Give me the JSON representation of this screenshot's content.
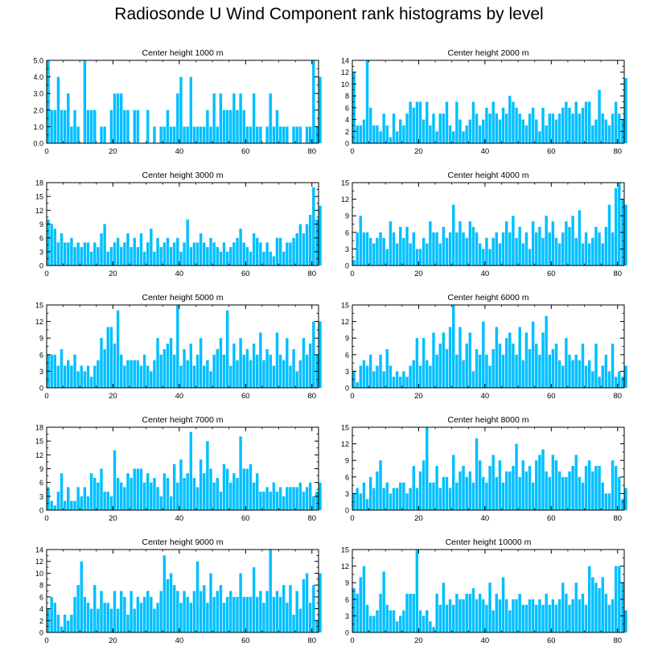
{
  "title": "Radiosonde U Wind Component rank histograms by level",
  "colors": {
    "bar": "#00bfff",
    "bar_edge": "#ffffff",
    "axis": "#000000"
  },
  "chart_data": [
    {
      "type": "bar",
      "title": "Center height 1000 m",
      "xlabel": "",
      "ylabel": "",
      "xlim": [
        0,
        82
      ],
      "ylim": [
        0,
        5
      ],
      "xticks": [
        0,
        20,
        40,
        60,
        80
      ],
      "xtick_labels": [
        "0",
        "20",
        "40",
        "60",
        "80"
      ],
      "yticks": [
        0,
        1,
        2,
        3,
        4,
        5
      ],
      "ytick_labels": [
        "0.0",
        "1.0",
        "2.0",
        "3.0",
        "4.0",
        "5.0"
      ],
      "x_start": 0,
      "values": [
        5,
        2,
        2,
        4,
        2,
        2,
        3,
        1,
        2,
        1,
        0,
        5,
        2,
        2,
        2,
        0,
        1,
        1,
        0,
        2,
        3,
        3,
        3,
        2,
        2,
        0,
        2,
        2,
        0,
        0,
        2,
        0,
        1,
        0,
        1,
        1,
        2,
        1,
        1,
        3,
        4,
        1,
        1,
        4,
        1,
        1,
        1,
        1,
        2,
        1,
        3,
        1,
        3,
        2,
        2,
        2,
        3,
        2,
        3,
        2,
        1,
        1,
        3,
        1,
        1,
        0,
        1,
        3,
        1,
        2,
        1,
        1,
        1,
        0,
        1,
        1,
        1,
        0,
        1,
        1,
        5,
        1,
        4
      ]
    },
    {
      "type": "bar",
      "title": "Center height 2000 m",
      "xlabel": "",
      "ylabel": "",
      "xlim": [
        0,
        82
      ],
      "ylim": [
        0,
        14
      ],
      "xticks": [
        0,
        20,
        40,
        60,
        80
      ],
      "xtick_labels": [
        "0",
        "20",
        "40",
        "60",
        "80"
      ],
      "yticks": [
        0,
        2,
        4,
        6,
        8,
        10,
        12,
        14
      ],
      "ytick_labels": [
        "0",
        "2",
        "4",
        "6",
        "8",
        "10",
        "12",
        "14"
      ],
      "x_start": 0,
      "values": [
        12,
        3,
        3,
        4,
        14,
        6,
        3,
        3,
        2,
        5,
        3,
        1,
        5,
        2,
        4,
        3,
        5,
        7,
        6,
        7,
        7,
        4,
        7,
        3,
        5,
        2,
        5,
        5,
        7,
        3,
        2,
        7,
        4,
        2,
        3,
        4,
        7,
        5,
        3,
        4,
        6,
        5,
        7,
        5,
        4,
        6,
        5,
        8,
        7,
        6,
        5,
        4,
        3,
        5,
        6,
        4,
        2,
        6,
        3,
        5,
        5,
        4,
        5,
        6,
        7,
        6,
        5,
        7,
        5,
        6,
        7,
        7,
        3,
        4,
        9,
        5,
        4,
        3,
        5,
        7,
        5,
        4,
        11
      ]
    },
    {
      "type": "bar",
      "title": "Center height 3000 m",
      "xlabel": "",
      "ylabel": "",
      "xlim": [
        0,
        82
      ],
      "ylim": [
        0,
        18
      ],
      "xticks": [
        0,
        20,
        40,
        60,
        80
      ],
      "xtick_labels": [
        "0",
        "20",
        "40",
        "60",
        "80"
      ],
      "yticks": [
        0,
        3,
        6,
        9,
        12,
        15,
        18
      ],
      "ytick_labels": [
        "0",
        "3",
        "6",
        "9",
        "12",
        "15",
        "18"
      ],
      "x_start": 0,
      "values": [
        10,
        9,
        8,
        5,
        7,
        5,
        5,
        6,
        4,
        5,
        4,
        5,
        5,
        3,
        5,
        4,
        7,
        9,
        3,
        4,
        5,
        6,
        4,
        5,
        7,
        4,
        6,
        4,
        7,
        3,
        5,
        8,
        3,
        6,
        4,
        5,
        6,
        4,
        5,
        6,
        3,
        5,
        10,
        4,
        5,
        5,
        7,
        5,
        4,
        6,
        5,
        4,
        3,
        5,
        3,
        4,
        5,
        6,
        8,
        5,
        4,
        3,
        7,
        6,
        5,
        3,
        5,
        3,
        2,
        6,
        6,
        3,
        5,
        5,
        6,
        7,
        9,
        7,
        9,
        11,
        17,
        10,
        13
      ]
    },
    {
      "type": "bar",
      "title": "Center height 4000 m",
      "xlabel": "",
      "ylabel": "",
      "xlim": [
        0,
        82
      ],
      "ylim": [
        0,
        15
      ],
      "xticks": [
        0,
        20,
        40,
        60,
        80
      ],
      "xtick_labels": [
        "0",
        "20",
        "40",
        "60",
        "80"
      ],
      "yticks": [
        0,
        3,
        6,
        9,
        12,
        15
      ],
      "ytick_labels": [
        "0",
        "3",
        "6",
        "9",
        "12",
        "15"
      ],
      "x_start": 0,
      "values": [
        1,
        6,
        9,
        6,
        6,
        5,
        4,
        5,
        6,
        5,
        3,
        8,
        6,
        4,
        7,
        5,
        7,
        4,
        6,
        3,
        3,
        5,
        4,
        8,
        6,
        6,
        4,
        7,
        5,
        6,
        11,
        6,
        8,
        6,
        5,
        8,
        7,
        6,
        4,
        3,
        5,
        3,
        5,
        6,
        4,
        6,
        8,
        6,
        9,
        5,
        7,
        4,
        6,
        3,
        8,
        6,
        7,
        5,
        9,
        6,
        8,
        5,
        4,
        6,
        8,
        7,
        9,
        5,
        10,
        4,
        6,
        4,
        5,
        7,
        6,
        4,
        7,
        11,
        6,
        14,
        15,
        12,
        11
      ]
    },
    {
      "type": "bar",
      "title": "Center height 5000 m",
      "xlabel": "",
      "ylabel": "",
      "xlim": [
        0,
        82
      ],
      "ylim": [
        0,
        15
      ],
      "xticks": [
        0,
        20,
        40,
        60,
        80
      ],
      "xtick_labels": [
        "0",
        "20",
        "40",
        "60",
        "80"
      ],
      "yticks": [
        0,
        3,
        6,
        9,
        12,
        15
      ],
      "ytick_labels": [
        "0",
        "3",
        "6",
        "9",
        "12",
        "15"
      ],
      "x_start": 0,
      "values": [
        6,
        6,
        6,
        4,
        7,
        4,
        5,
        4,
        6,
        3,
        4,
        3,
        4,
        2,
        4,
        5,
        9,
        7,
        11,
        11,
        8,
        14,
        6,
        4,
        5,
        5,
        5,
        5,
        4,
        6,
        4,
        3,
        5,
        9,
        6,
        7,
        8,
        9,
        6,
        15,
        4,
        7,
        5,
        8,
        4,
        6,
        9,
        4,
        5,
        3,
        6,
        7,
        9,
        6,
        14,
        4,
        8,
        5,
        9,
        6,
        7,
        5,
        8,
        6,
        10,
        5,
        7,
        6,
        4,
        10,
        6,
        5,
        9,
        4,
        7,
        3,
        5,
        9,
        6,
        8,
        12,
        6,
        12
      ]
    },
    {
      "type": "bar",
      "title": "Center height 6000 m",
      "xlabel": "",
      "ylabel": "",
      "xlim": [
        0,
        82
      ],
      "ylim": [
        0,
        15
      ],
      "xticks": [
        0,
        20,
        40,
        60,
        80
      ],
      "xtick_labels": [
        "0",
        "20",
        "40",
        "60",
        "80"
      ],
      "yticks": [
        0,
        3,
        6,
        9,
        12,
        15
      ],
      "ytick_labels": [
        "0",
        "3",
        "6",
        "9",
        "12",
        "15"
      ],
      "x_start": 0,
      "values": [
        3,
        1,
        4,
        5,
        4,
        6,
        3,
        4,
        6,
        3,
        7,
        4,
        2,
        3,
        2,
        3,
        2,
        4,
        5,
        9,
        4,
        9,
        5,
        4,
        10,
        6,
        8,
        10,
        7,
        11,
        15,
        6,
        11,
        5,
        8,
        10,
        3,
        7,
        6,
        12,
        6,
        4,
        7,
        11,
        8,
        6,
        9,
        10,
        8,
        6,
        11,
        5,
        10,
        7,
        12,
        8,
        6,
        10,
        13,
        6,
        7,
        8,
        5,
        4,
        9,
        6,
        5,
        6,
        5,
        8,
        4,
        5,
        3,
        8,
        2,
        4,
        6,
        3,
        8,
        2,
        3,
        2,
        4
      ]
    },
    {
      "type": "bar",
      "title": "Center height 7000 m",
      "xlabel": "",
      "ylabel": "",
      "xlim": [
        0,
        82
      ],
      "ylim": [
        0,
        18
      ],
      "xticks": [
        0,
        20,
        40,
        60,
        80
      ],
      "xtick_labels": [
        "0",
        "20",
        "40",
        "60",
        "80"
      ],
      "yticks": [
        0,
        3,
        6,
        9,
        12,
        15,
        18
      ],
      "ytick_labels": [
        "0",
        "3",
        "6",
        "9",
        "12",
        "15",
        "18"
      ],
      "x_start": 0,
      "values": [
        5,
        2,
        1,
        4,
        8,
        2,
        5,
        2,
        2,
        5,
        3,
        5,
        3,
        8,
        7,
        6,
        9,
        4,
        4,
        3,
        13,
        7,
        6,
        5,
        8,
        7,
        9,
        9,
        9,
        6,
        8,
        6,
        7,
        5,
        3,
        8,
        7,
        3,
        10,
        6,
        11,
        7,
        8,
        17,
        7,
        5,
        11,
        8,
        15,
        9,
        6,
        7,
        4,
        10,
        9,
        6,
        8,
        7,
        16,
        9,
        9,
        10,
        6,
        8,
        4,
        4,
        5,
        4,
        6,
        4,
        5,
        3,
        5,
        5,
        5,
        5,
        6,
        4,
        5,
        6,
        3,
        4,
        6
      ]
    },
    {
      "type": "bar",
      "title": "Center height 8000 m",
      "xlabel": "",
      "ylabel": "",
      "xlim": [
        0,
        82
      ],
      "ylim": [
        0,
        15
      ],
      "xticks": [
        0,
        20,
        40,
        60,
        80
      ],
      "xtick_labels": [
        "0",
        "20",
        "40",
        "60",
        "80"
      ],
      "yticks": [
        0,
        3,
        6,
        9,
        12,
        15
      ],
      "ytick_labels": [
        "0",
        "3",
        "6",
        "9",
        "12",
        "15"
      ],
      "x_start": 0,
      "values": [
        3,
        4,
        3,
        5,
        2,
        6,
        4,
        7,
        9,
        4,
        5,
        3,
        4,
        4,
        5,
        5,
        3,
        4,
        8,
        4,
        7,
        9,
        15,
        5,
        5,
        8,
        4,
        6,
        6,
        4,
        10,
        5,
        7,
        8,
        6,
        7,
        5,
        13,
        9,
        6,
        5,
        8,
        10,
        6,
        9,
        5,
        7,
        7,
        8,
        12,
        6,
        9,
        7,
        8,
        5,
        9,
        10,
        11,
        7,
        6,
        10,
        9,
        7,
        6,
        6,
        7,
        8,
        10,
        6,
        5,
        8,
        9,
        7,
        8,
        8,
        5,
        3,
        3,
        9,
        8,
        6,
        2,
        4
      ]
    },
    {
      "type": "bar",
      "title": "Center height 9000 m",
      "xlabel": "",
      "ylabel": "",
      "xlim": [
        0,
        82
      ],
      "ylim": [
        0,
        14
      ],
      "xticks": [
        0,
        20,
        40,
        60,
        80
      ],
      "xtick_labels": [
        "0",
        "20",
        "40",
        "60",
        "80"
      ],
      "yticks": [
        0,
        2,
        4,
        6,
        8,
        10,
        12,
        14
      ],
      "ytick_labels": [
        "0",
        "2",
        "4",
        "6",
        "8",
        "10",
        "12",
        "14"
      ],
      "x_start": 0,
      "values": [
        4,
        6,
        5,
        3,
        1,
        3,
        2,
        3,
        6,
        8,
        12,
        6,
        5,
        4,
        8,
        4,
        7,
        5,
        5,
        4,
        7,
        4,
        7,
        6,
        3,
        7,
        4,
        6,
        5,
        6,
        7,
        6,
        4,
        5,
        7,
        13,
        9,
        10,
        8,
        7,
        5,
        7,
        6,
        5,
        7,
        12,
        7,
        8,
        5,
        10,
        6,
        7,
        8,
        5,
        6,
        7,
        6,
        6,
        10,
        6,
        6,
        6,
        11,
        6,
        7,
        5,
        7,
        14,
        6,
        7,
        6,
        8,
        5,
        8,
        3,
        7,
        4,
        9,
        10,
        5,
        8,
        2,
        10
      ]
    },
    {
      "type": "bar",
      "title": "Center height 10000 m",
      "xlabel": "",
      "ylabel": "",
      "xlim": [
        0,
        82
      ],
      "ylim": [
        0,
        15
      ],
      "xticks": [
        0,
        20,
        40,
        60,
        80
      ],
      "xtick_labels": [
        "0",
        "20",
        "40",
        "60",
        "80"
      ],
      "yticks": [
        0,
        3,
        6,
        9,
        12,
        15
      ],
      "ytick_labels": [
        "0",
        "3",
        "6",
        "9",
        "12",
        "15"
      ],
      "x_start": 0,
      "values": [
        8,
        7,
        10,
        12,
        5,
        3,
        3,
        4,
        7,
        11,
        5,
        4,
        4,
        2,
        3,
        4,
        7,
        7,
        7,
        15,
        4,
        3,
        4,
        2,
        1,
        7,
        5,
        9,
        5,
        6,
        5,
        7,
        6,
        6,
        7,
        7,
        8,
        6,
        7,
        6,
        5,
        9,
        4,
        7,
        6,
        10,
        6,
        4,
        6,
        6,
        7,
        5,
        5,
        6,
        6,
        5,
        6,
        5,
        7,
        5,
        6,
        5,
        6,
        9,
        7,
        5,
        6,
        9,
        6,
        7,
        5,
        12,
        10,
        9,
        8,
        10,
        7,
        5,
        6,
        12,
        12,
        9,
        4
      ]
    }
  ]
}
